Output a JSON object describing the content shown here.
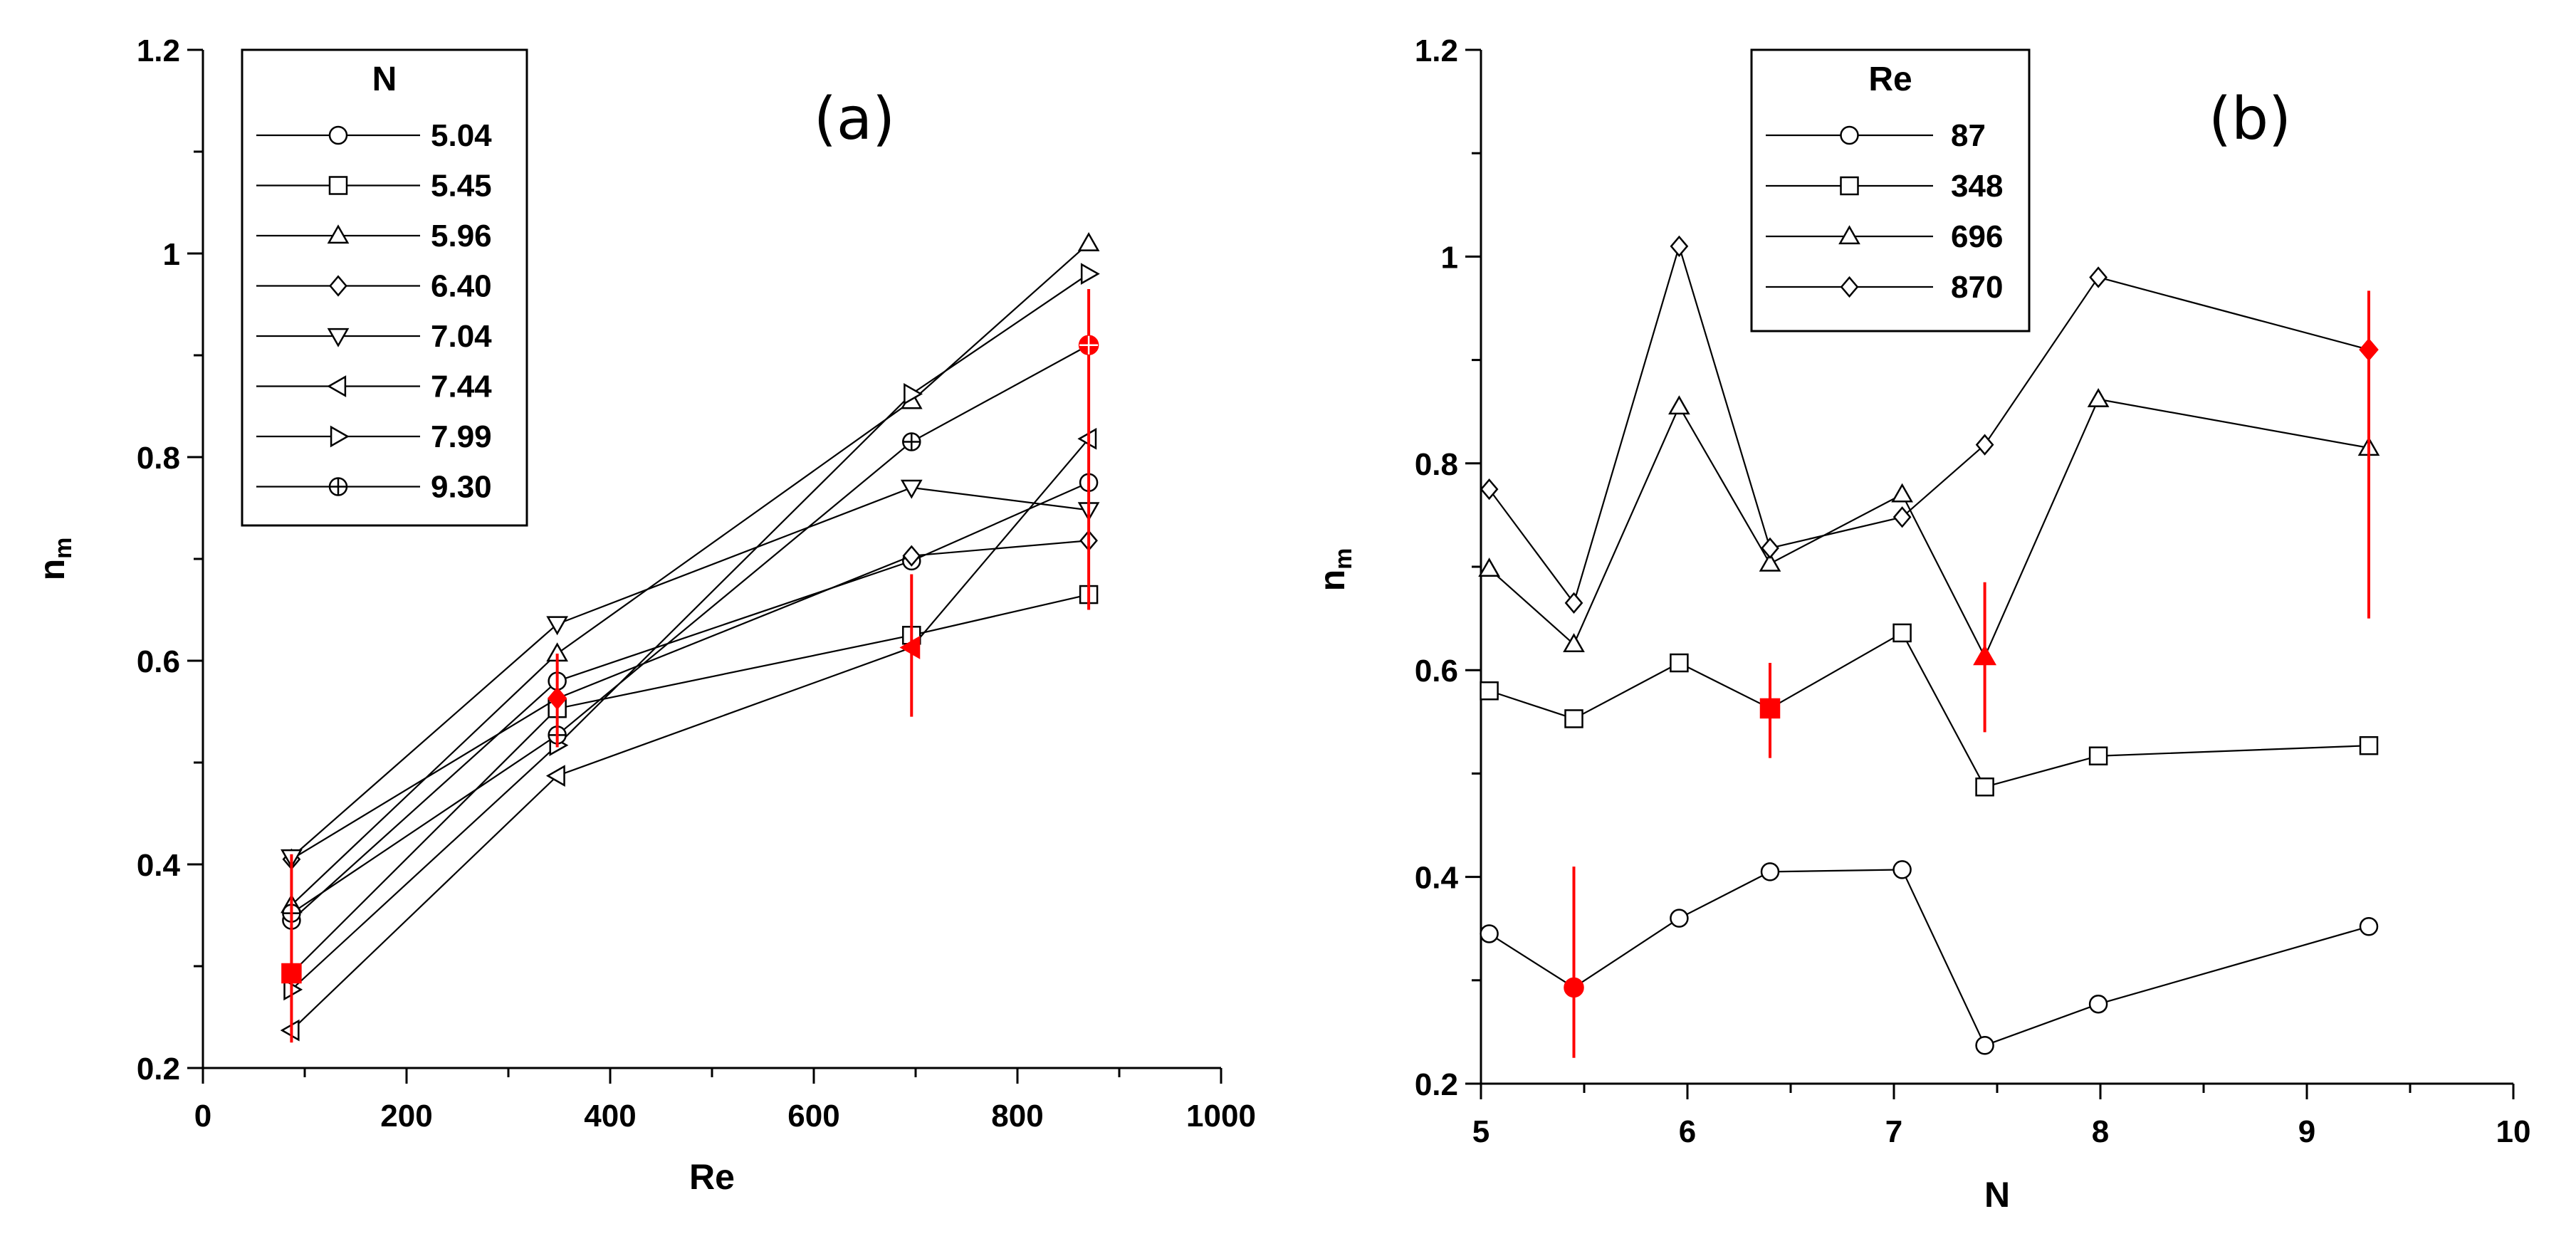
{
  "chart_data": [
    {
      "type": "line",
      "panel_label": "(a)",
      "xlabel": "Re",
      "ylabel_main": "n",
      "ylabel_sub": "m",
      "xlim": [
        0,
        1000
      ],
      "ylim": [
        0.2,
        1.2
      ],
      "xticks": [
        0,
        200,
        400,
        600,
        800,
        1000
      ],
      "yticks": [
        0.2,
        0.4,
        0.6,
        0.8,
        1,
        1.2
      ],
      "xtick_labels": [
        "0",
        "200",
        "400",
        "600",
        "800",
        "1000"
      ],
      "ytick_labels": [
        "0.2",
        "0.4",
        "0.6",
        "0.8",
        "1",
        "1.2"
      ],
      "legend_title": "N",
      "x": [
        87,
        348,
        696,
        870
      ],
      "series": [
        {
          "name": "5.04",
          "marker": "circle",
          "values": [
            0.345,
            0.58,
            0.698,
            0.775
          ]
        },
        {
          "name": "5.45",
          "marker": "square",
          "values": [
            0.293,
            0.553,
            0.625,
            0.665
          ]
        },
        {
          "name": "5.96",
          "marker": "triangle-up",
          "values": [
            0.36,
            0.607,
            0.855,
            1.01
          ]
        },
        {
          "name": "6.40",
          "marker": "diamond",
          "values": [
            0.405,
            0.563,
            0.703,
            0.718
          ]
        },
        {
          "name": "7.04",
          "marker": "triangle-down",
          "values": [
            0.407,
            0.636,
            0.77,
            0.748
          ]
        },
        {
          "name": "7.44",
          "marker": "triangle-left",
          "values": [
            0.237,
            0.487,
            0.613,
            0.818
          ]
        },
        {
          "name": "7.99",
          "marker": "triangle-right",
          "values": [
            0.277,
            0.517,
            0.862,
            0.98
          ]
        },
        {
          "name": "9.30",
          "marker": "circle-plus",
          "values": [
            0.352,
            0.527,
            0.815,
            0.91
          ]
        }
      ],
      "error_bars": [
        {
          "x": 87,
          "y": 0.293,
          "low": 0.225,
          "high": 0.41,
          "marker": "square"
        },
        {
          "x": 348,
          "y": 0.563,
          "low": 0.515,
          "high": 0.607,
          "marker": "diamond"
        },
        {
          "x": 696,
          "y": 0.613,
          "low": 0.545,
          "high": 0.685,
          "marker": "triangle-left"
        },
        {
          "x": 870,
          "y": 0.91,
          "low": 0.65,
          "high": 0.965,
          "marker": "circle-plus"
        }
      ]
    },
    {
      "type": "line",
      "panel_label": "(b)",
      "xlabel": "N",
      "ylabel_main": "n",
      "ylabel_sub": "m",
      "xlim": [
        5,
        10
      ],
      "ylim": [
        0.2,
        1.2
      ],
      "xticks": [
        5,
        6,
        7,
        8,
        9,
        10
      ],
      "yticks": [
        0.2,
        0.4,
        0.6,
        0.8,
        1,
        1.2
      ],
      "xtick_labels": [
        "5",
        "6",
        "7",
        "8",
        "9",
        "10"
      ],
      "ytick_labels": [
        "0.2",
        "0.4",
        "0.6",
        "0.8",
        "1",
        "1.2"
      ],
      "legend_title": "Re",
      "x": [
        5.04,
        5.45,
        5.96,
        6.4,
        7.04,
        7.44,
        7.99,
        9.3
      ],
      "series": [
        {
          "name": "87",
          "marker": "circle",
          "values": [
            0.345,
            0.293,
            0.36,
            0.405,
            0.407,
            0.237,
            0.277,
            0.352
          ]
        },
        {
          "name": "348",
          "marker": "square",
          "values": [
            0.58,
            0.553,
            0.607,
            0.563,
            0.636,
            0.487,
            0.517,
            0.527
          ]
        },
        {
          "name": "696",
          "marker": "triangle-up",
          "values": [
            0.698,
            0.625,
            0.855,
            0.703,
            0.77,
            0.613,
            0.862,
            0.815
          ]
        },
        {
          "name": "870",
          "marker": "diamond",
          "values": [
            0.775,
            0.665,
            1.01,
            0.718,
            0.748,
            0.818,
            0.98,
            0.91
          ]
        }
      ],
      "error_bars": [
        {
          "x": 5.45,
          "y": 0.293,
          "low": 0.225,
          "high": 0.41,
          "marker": "circle"
        },
        {
          "x": 6.4,
          "y": 0.563,
          "low": 0.515,
          "high": 0.607,
          "marker": "square"
        },
        {
          "x": 7.44,
          "y": 0.613,
          "low": 0.54,
          "high": 0.685,
          "marker": "triangle-up"
        },
        {
          "x": 9.3,
          "y": 0.91,
          "low": 0.65,
          "high": 0.967,
          "marker": "diamond"
        }
      ]
    }
  ],
  "colors": {
    "line": "#000000",
    "error": "#ff0000",
    "background": "#ffffff"
  }
}
